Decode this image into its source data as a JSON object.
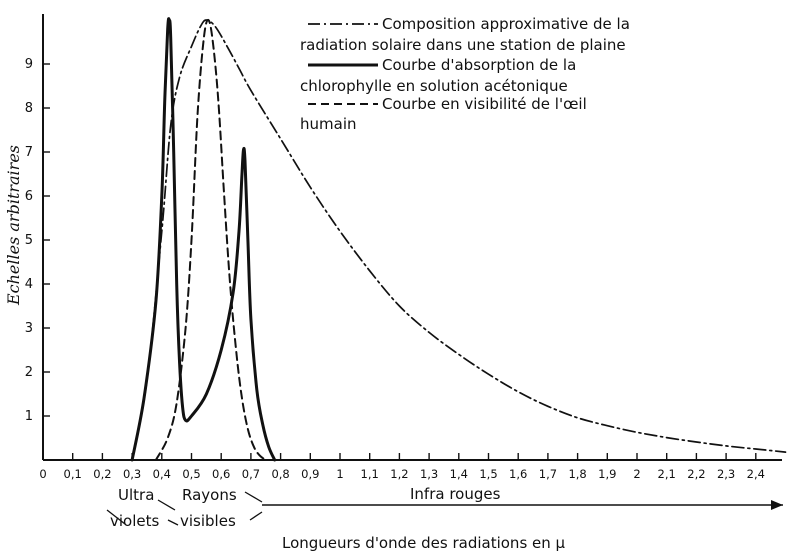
{
  "chart_data": {
    "type": "line",
    "xlabel": "Longueurs d'onde des radiations en μ",
    "ylabel": "Echelles arbitraires",
    "xlim": [
      0,
      2.5
    ],
    "ylim": [
      0,
      10
    ],
    "x_ticks": [
      "0",
      "0,1",
      "0,2",
      "0,3",
      "0,4",
      "0,5",
      "0,6",
      "0,7",
      "0,8",
      "0,9",
      "1",
      "1,1",
      "1,2",
      "1,3",
      "1,4",
      "1,5",
      "1,6",
      "1,7",
      "1,8",
      "1,9",
      "2",
      "2,1",
      "2,2",
      "2,3",
      "2,4"
    ],
    "y_ticks": [
      "1",
      "2",
      "3",
      "4",
      "5",
      "6",
      "7",
      "8",
      "9"
    ],
    "series": [
      {
        "name": "Composition approximative de la radiation solaire dans une station de plaine",
        "style": "dash-dot",
        "x": [
          0.3,
          0.35,
          0.4,
          0.43,
          0.46,
          0.5,
          0.53,
          0.55,
          0.58,
          0.62,
          0.66,
          0.7,
          0.8,
          0.9,
          1.0,
          1.1,
          1.2,
          1.3,
          1.4,
          1.5,
          1.6,
          1.7,
          1.8,
          1.9,
          2.0,
          2.1,
          2.2,
          2.3,
          2.4,
          2.5
        ],
        "y": [
          0,
          1.8,
          5.2,
          7.6,
          8.7,
          9.4,
          9.85,
          10.0,
          9.85,
          9.4,
          8.9,
          8.4,
          7.3,
          6.2,
          5.2,
          4.3,
          3.5,
          2.9,
          2.4,
          1.95,
          1.55,
          1.22,
          0.96,
          0.78,
          0.63,
          0.51,
          0.41,
          0.32,
          0.25,
          0.18
        ]
      },
      {
        "name": "Courbe d'absorption de la chlorophylle en solution acétonique",
        "style": "solid",
        "x": [
          0.3,
          0.34,
          0.38,
          0.4,
          0.41,
          0.42,
          0.425,
          0.43,
          0.44,
          0.45,
          0.46,
          0.47,
          0.48,
          0.5,
          0.55,
          0.6,
          0.64,
          0.66,
          0.67,
          0.675,
          0.68,
          0.69,
          0.7,
          0.72,
          0.74,
          0.76,
          0.78
        ],
        "y": [
          0,
          1.4,
          3.6,
          6.0,
          8.2,
          9.8,
          10.0,
          9.6,
          7.0,
          4.0,
          2.2,
          1.2,
          0.9,
          1.0,
          1.5,
          2.5,
          3.8,
          5.2,
          6.5,
          7.05,
          6.8,
          5.0,
          3.2,
          1.6,
          0.8,
          0.3,
          0
        ]
      },
      {
        "name": "Courbe en visibilité de l'œil humain",
        "style": "dashed",
        "x": [
          0.38,
          0.42,
          0.45,
          0.48,
          0.5,
          0.52,
          0.54,
          0.555,
          0.57,
          0.59,
          0.61,
          0.63,
          0.65,
          0.67,
          0.69,
          0.71,
          0.73,
          0.75
        ],
        "y": [
          0,
          0.5,
          1.3,
          3.0,
          5.0,
          7.8,
          9.5,
          10.0,
          9.6,
          8.2,
          6.0,
          4.0,
          2.5,
          1.4,
          0.7,
          0.3,
          0.1,
          0
        ]
      }
    ],
    "bands": [
      {
        "label_top": "Ultra",
        "label_bottom": "violets",
        "x_start": 0.3,
        "x_end": 0.4
      },
      {
        "label_top": "Rayons",
        "label_bottom": "visibles",
        "x_start": 0.4,
        "x_end": 0.76
      },
      {
        "label_top": "Infra rouges",
        "label_bottom": "",
        "x_start": 0.76,
        "x_end": 2.5
      }
    ],
    "legend": {
      "position": "top-right",
      "entries": [
        {
          "style": "dash-dot",
          "lines": [
            "Composition approximative de la",
            "radiation solaire dans une station de plaine"
          ]
        },
        {
          "style": "solid",
          "lines": [
            "Courbe d'absorption de la",
            "chlorophylle en solution acétonique"
          ]
        },
        {
          "style": "dashed",
          "lines": [
            "Courbe en visibilité de l'œil",
            "humain"
          ]
        }
      ]
    },
    "grid": false
  }
}
